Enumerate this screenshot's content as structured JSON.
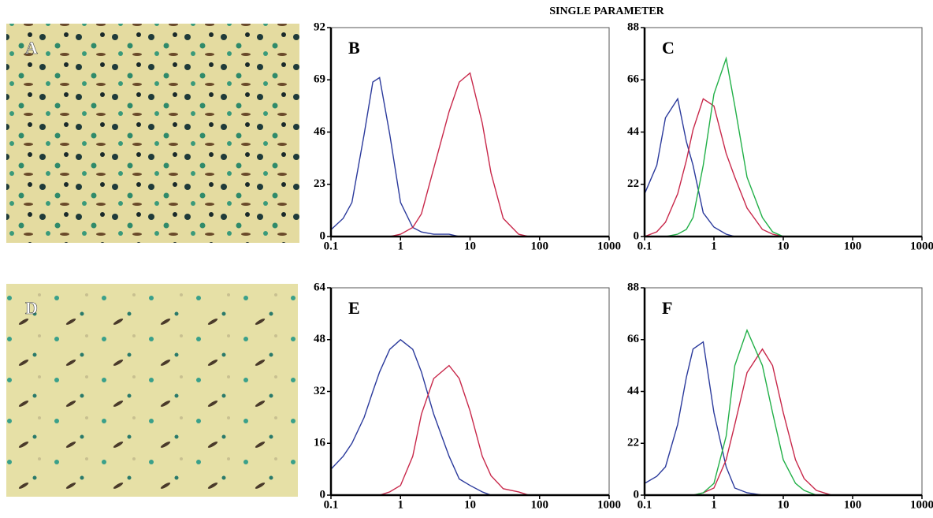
{
  "title": "SINGLE PARAMETER",
  "panels": [
    {
      "label": "A"
    },
    {
      "label": "D"
    }
  ],
  "chart_data": [
    {
      "type": "line",
      "title": "B",
      "xscale": "log",
      "xlim": [
        0.1,
        1000
      ],
      "xticks": [
        0.1,
        1,
        10,
        100,
        1000
      ],
      "ylim": [
        0,
        92
      ],
      "yticks": [
        0,
        23,
        46,
        69,
        92
      ],
      "x": [
        0.1,
        0.15,
        0.2,
        0.3,
        0.4,
        0.5,
        0.7,
        1,
        1.5,
        2,
        3,
        5,
        7,
        10,
        15,
        20,
        30,
        50,
        70,
        100
      ],
      "series": [
        {
          "color": "#2b3a9c",
          "values": [
            3,
            8,
            15,
            45,
            68,
            70,
            45,
            15,
            4,
            2,
            1,
            1,
            0,
            0,
            0,
            0,
            0,
            0,
            0,
            0
          ]
        },
        {
          "color": "#c8284a",
          "values": [
            0,
            0,
            0,
            0,
            0,
            0,
            0,
            1,
            4,
            10,
            30,
            55,
            68,
            72,
            50,
            28,
            8,
            1,
            0,
            0
          ]
        }
      ]
    },
    {
      "type": "line",
      "title": "C",
      "xscale": "log",
      "xlim": [
        0.1,
        1000
      ],
      "xticks": [
        0.1,
        1,
        10,
        100,
        1000
      ],
      "ylim": [
        0,
        88
      ],
      "yticks": [
        0,
        22,
        44,
        66,
        88
      ],
      "x": [
        0.1,
        0.15,
        0.2,
        0.3,
        0.4,
        0.5,
        0.7,
        1,
        1.5,
        2,
        3,
        5,
        7,
        10,
        15,
        20,
        30,
        50,
        70,
        100
      ],
      "series": [
        {
          "color": "#2b3a9c",
          "values": [
            18,
            30,
            50,
            58,
            40,
            30,
            10,
            4,
            1,
            0,
            0,
            0,
            0,
            0,
            0,
            0,
            0,
            0,
            0,
            0
          ]
        },
        {
          "color": "#c8284a",
          "values": [
            0,
            2,
            6,
            18,
            32,
            45,
            58,
            55,
            35,
            25,
            12,
            3,
            1,
            0,
            0,
            0,
            0,
            0,
            0,
            0
          ]
        },
        {
          "color": "#22b048",
          "values": [
            0,
            0,
            0,
            1,
            3,
            8,
            30,
            60,
            75,
            55,
            25,
            8,
            2,
            0,
            0,
            0,
            0,
            0,
            0,
            0
          ]
        }
      ]
    },
    {
      "type": "line",
      "title": "E",
      "xscale": "log",
      "xlim": [
        0.1,
        1000
      ],
      "xticks": [
        0.1,
        1,
        10,
        100,
        1000
      ],
      "ylim": [
        0,
        64
      ],
      "yticks": [
        0,
        16,
        32,
        48,
        64
      ],
      "x": [
        0.1,
        0.15,
        0.2,
        0.3,
        0.4,
        0.5,
        0.7,
        1,
        1.5,
        2,
        3,
        5,
        7,
        10,
        15,
        20,
        30,
        50,
        70,
        100
      ],
      "series": [
        {
          "color": "#2b3a9c",
          "values": [
            8,
            12,
            16,
            24,
            32,
            38,
            45,
            48,
            45,
            38,
            25,
            12,
            5,
            3,
            1,
            0,
            0,
            0,
            0,
            0
          ]
        },
        {
          "color": "#c8284a",
          "values": [
            0,
            0,
            0,
            0,
            0,
            0,
            1,
            3,
            12,
            25,
            36,
            40,
            36,
            26,
            12,
            6,
            2,
            1,
            0,
            0
          ]
        }
      ]
    },
    {
      "type": "line",
      "title": "F",
      "xscale": "log",
      "xlim": [
        0.1,
        1000
      ],
      "xticks": [
        0.1,
        1,
        10,
        100,
        1000
      ],
      "ylim": [
        0,
        88
      ],
      "yticks": [
        0,
        22,
        44,
        66,
        88
      ],
      "x": [
        0.1,
        0.15,
        0.2,
        0.3,
        0.4,
        0.5,
        0.7,
        1,
        1.5,
        2,
        3,
        5,
        7,
        10,
        15,
        20,
        30,
        50,
        70,
        100
      ],
      "series": [
        {
          "color": "#2b3a9c",
          "values": [
            5,
            8,
            12,
            30,
            50,
            62,
            65,
            35,
            12,
            3,
            1,
            0,
            0,
            0,
            0,
            0,
            0,
            0,
            0,
            0
          ]
        },
        {
          "color": "#c8284a",
          "values": [
            0,
            0,
            0,
            0,
            0,
            0,
            1,
            3,
            15,
            30,
            52,
            62,
            55,
            35,
            15,
            7,
            2,
            0,
            0,
            0
          ]
        },
        {
          "color": "#22b048",
          "values": [
            0,
            0,
            0,
            0,
            0,
            0,
            1,
            5,
            25,
            55,
            70,
            55,
            35,
            15,
            5,
            2,
            0,
            0,
            0,
            0
          ]
        }
      ]
    }
  ]
}
